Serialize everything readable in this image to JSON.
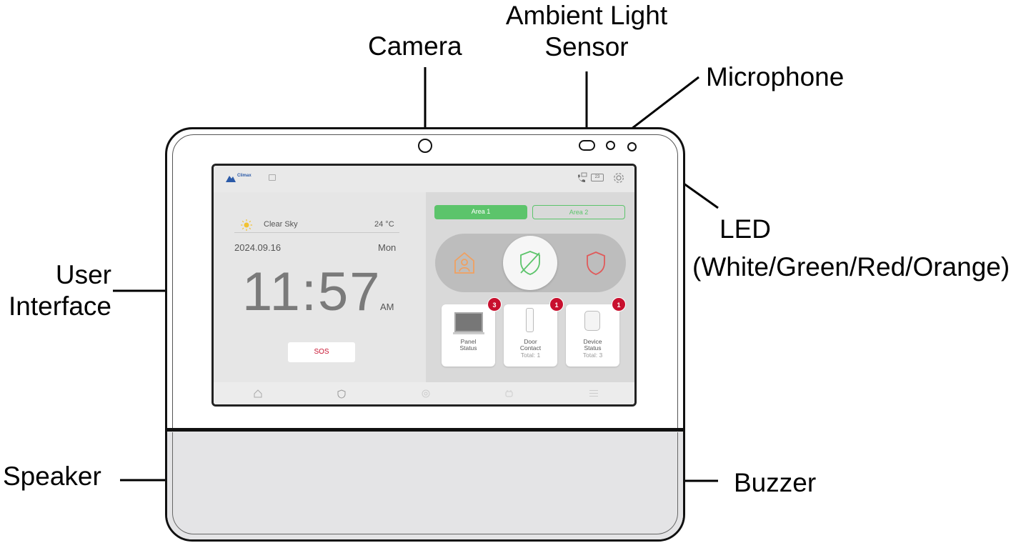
{
  "callouts": {
    "camera": "Camera",
    "ambient_line1": "Ambient Light",
    "ambient_line2": "Sensor",
    "microphone": "Microphone",
    "led": "LED",
    "led_colors": "(White/Green/Red/Orange)",
    "ui_line1": "User",
    "ui_line2": "Interface",
    "speaker": "Speaker",
    "buzzer": "Buzzer"
  },
  "screen": {
    "logo_text": "Climax",
    "weather": "Clear Sky",
    "temperature": "24 °C",
    "date": "2024.09.16",
    "weekday": "Mon",
    "time": "11:57",
    "ampm": "AM",
    "sos": "SOS",
    "phone_badge": "23",
    "areas": [
      "Area 1",
      "Area 2"
    ],
    "cards": [
      {
        "line1": "Panel",
        "line2": "Status",
        "line3": "",
        "badge": "3"
      },
      {
        "line1": "Door",
        "line2": "Contact",
        "line3": "Total: 1",
        "badge": "1"
      },
      {
        "line1": "Device",
        "line2": "Status",
        "line3": "Total: 3",
        "badge": "1"
      }
    ]
  },
  "colors": {
    "accent_green": "#5cc46b",
    "home_orange": "#f0a060",
    "away_red": "#e05a5a",
    "badge_red": "#c8102e"
  }
}
